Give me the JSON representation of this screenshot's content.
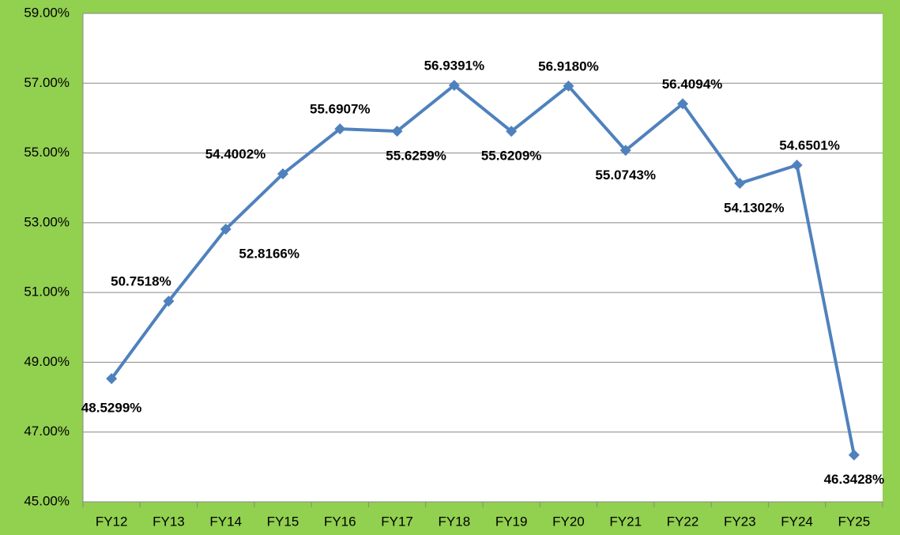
{
  "chart_data": {
    "type": "line",
    "categories": [
      "FY12",
      "FY13",
      "FY14",
      "FY15",
      "FY16",
      "FY17",
      "FY18",
      "FY19",
      "FY20",
      "FY21",
      "FY22",
      "FY23",
      "FY24",
      "FY25"
    ],
    "values": [
      48.5299,
      50.7518,
      52.8166,
      54.4002,
      55.6907,
      55.6259,
      56.9391,
      55.6209,
      56.918,
      55.0743,
      56.4094,
      54.1302,
      54.6501,
      46.3428
    ],
    "value_labels": [
      "48.5299%",
      "50.7518%",
      "52.8166%",
      "54.4002%",
      "55.6907%",
      "55.6259%",
      "56.9391%",
      "55.6209%",
      "56.9180%",
      "55.0743%",
      "56.4094%",
      "54.1302%",
      "54.6501%",
      "46.3428%"
    ],
    "color": "#4f81bd",
    "ylim": [
      45,
      59
    ],
    "yticks": [
      {
        "value": 45,
        "label": "45.00%"
      },
      {
        "value": 47,
        "label": "47.00%"
      },
      {
        "value": 49,
        "label": "49.00%"
      },
      {
        "value": 51,
        "label": "51.00%"
      },
      {
        "value": 53,
        "label": "53.00%"
      },
      {
        "value": 55,
        "label": "55.00%"
      },
      {
        "value": 57,
        "label": "57.00%"
      },
      {
        "value": 59,
        "label": "59.00%"
      }
    ],
    "grid": true
  }
}
